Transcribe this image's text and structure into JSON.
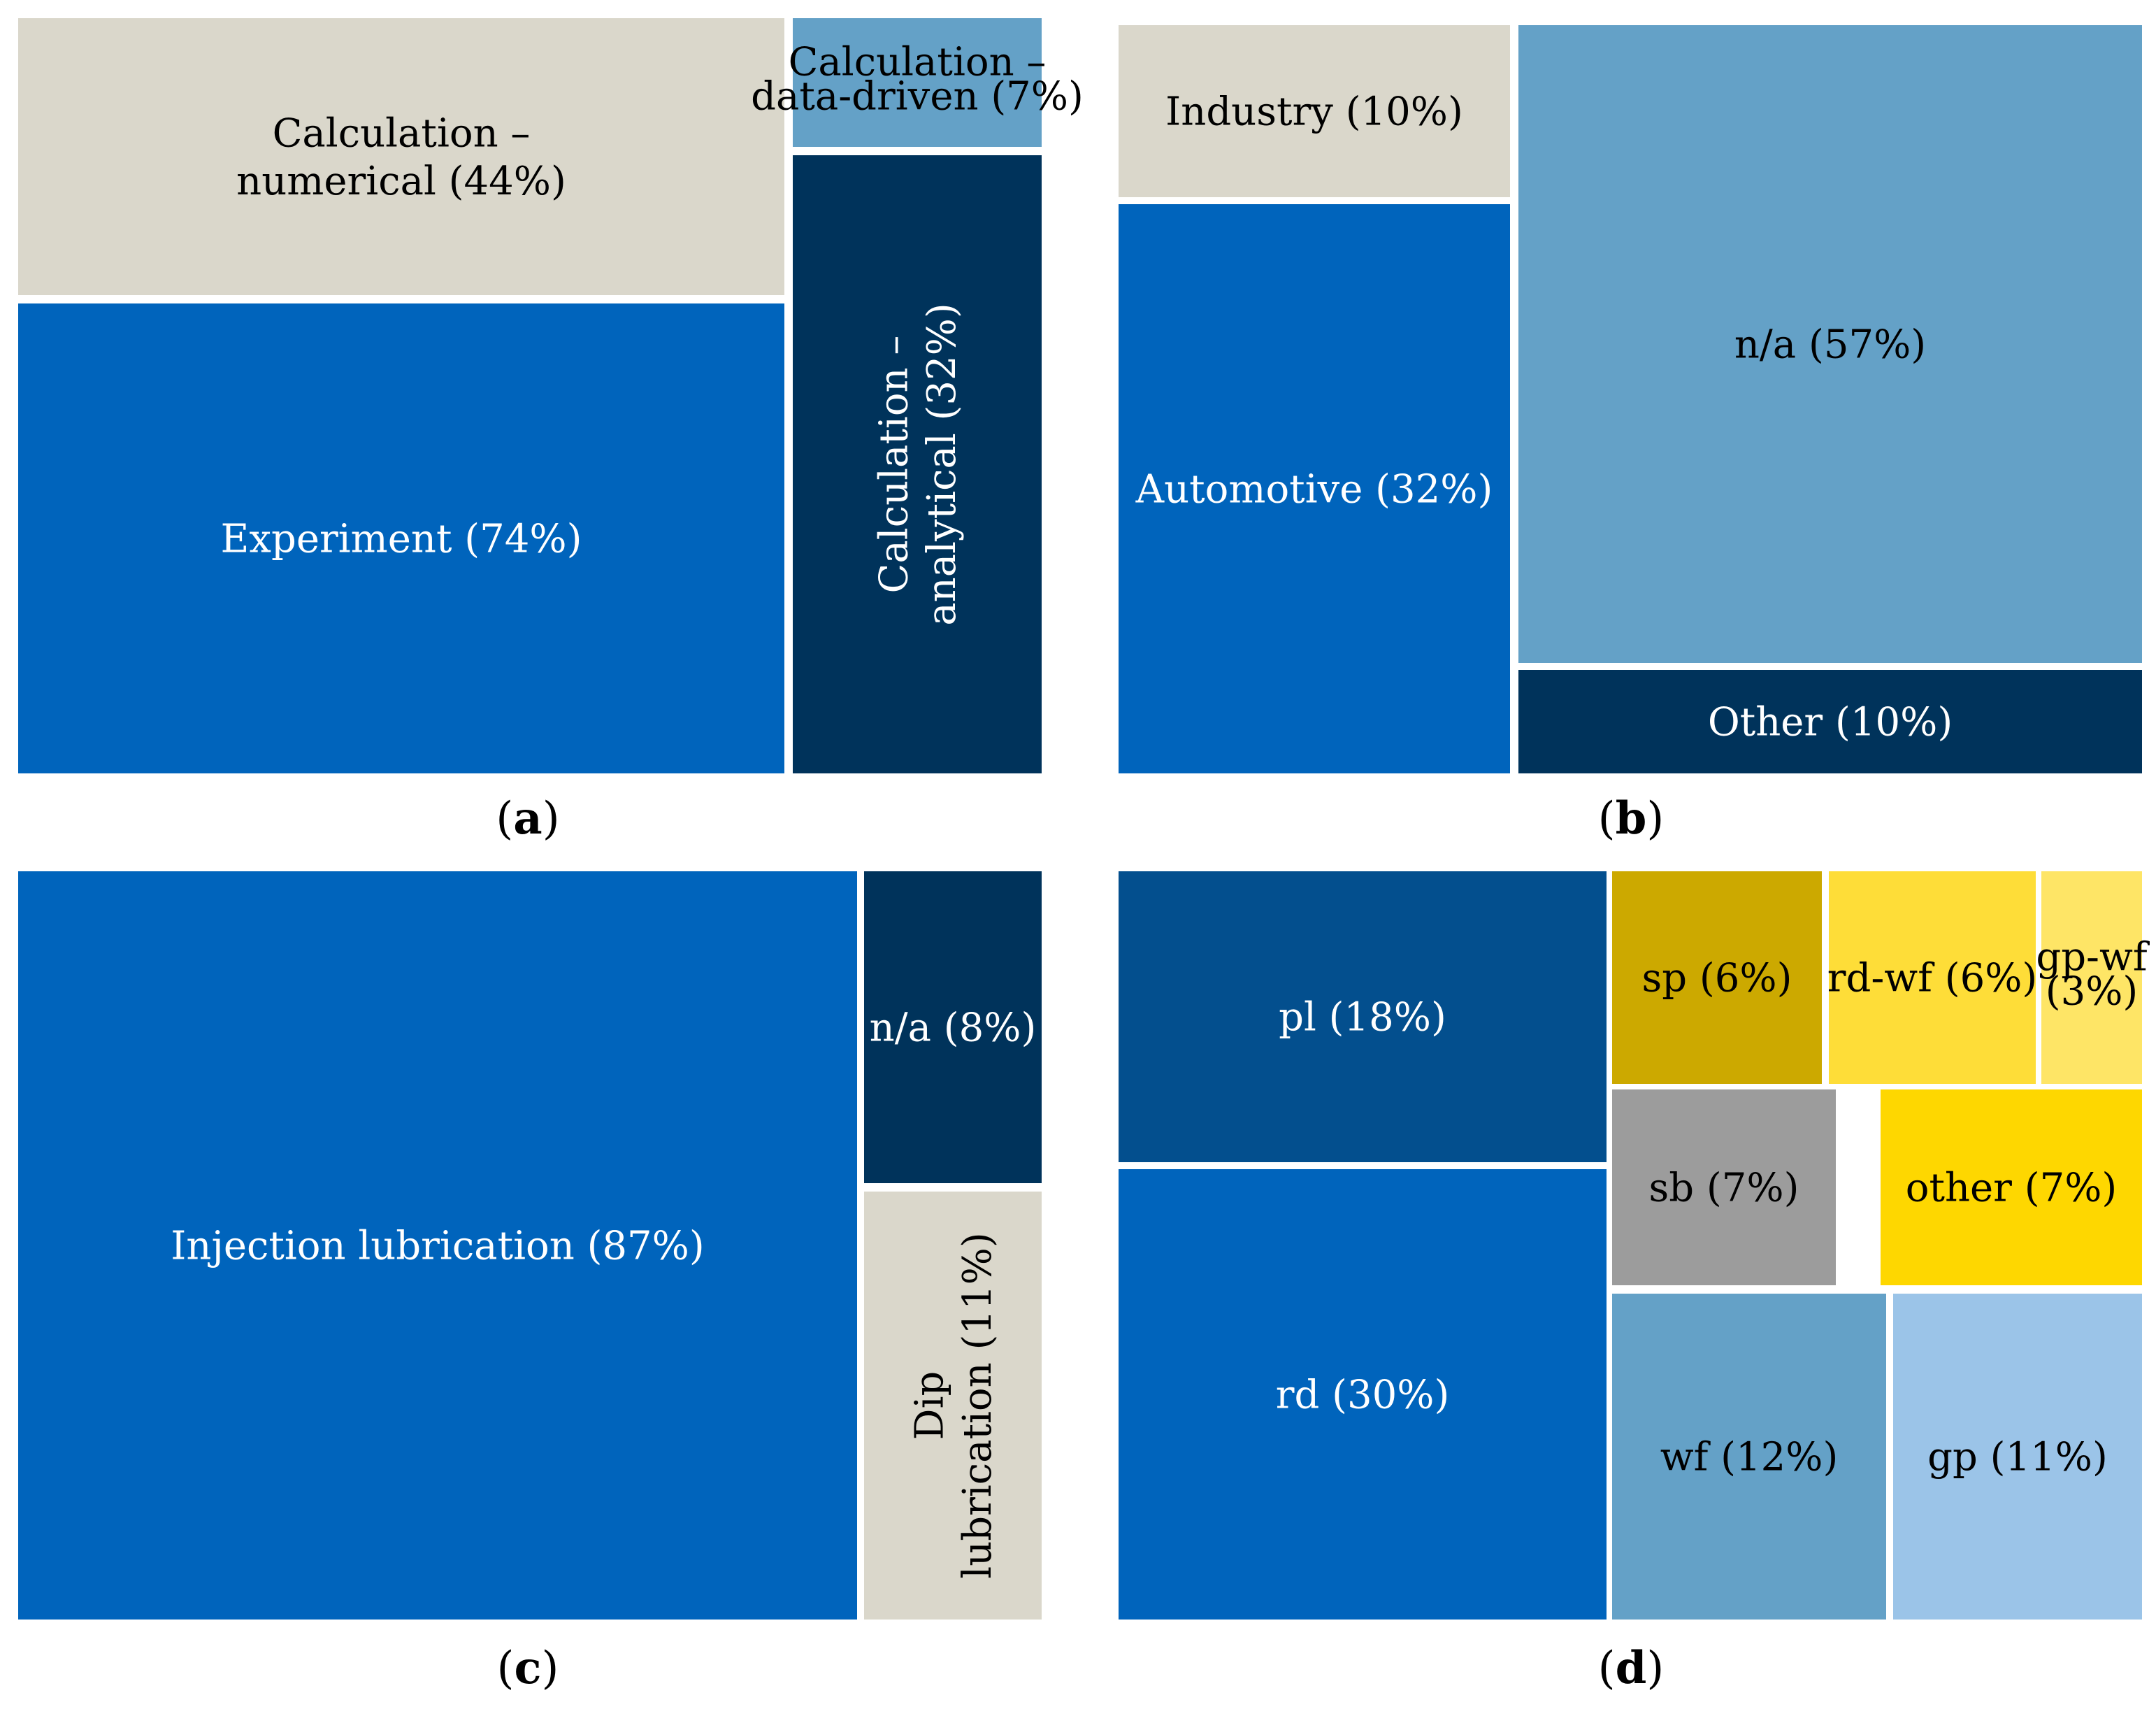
{
  "colors": {
    "beige": "#dad7cb",
    "blue": "#0064bc",
    "navy": "#00335b",
    "steel": "#64a1c7",
    "darkblue": "#034f8e",
    "mustard": "#cca900",
    "yellow": "#fedd38",
    "lightyellow": "#fee566",
    "gray": "#9c9c9c",
    "gold": "#fed700",
    "lightblue": "#9bc4e8"
  },
  "chart_data": [
    {
      "id": "a",
      "type": "treemap",
      "caption": "a",
      "tiles": [
        {
          "lines": [
            "Calculation –",
            "numerical (44%)"
          ],
          "value": 44,
          "color": "beige",
          "text_color": "#000000"
        },
        {
          "lines": [
            "Calculation –",
            "data-driven (7%)"
          ],
          "value": 7,
          "color": "steel",
          "text_color": "#000000"
        },
        {
          "lines": [
            "Experiment (74%)"
          ],
          "value": 74,
          "color": "blue",
          "text_color": "#ffffff"
        },
        {
          "lines": [
            "Calculation –",
            "analytical (32%)"
          ],
          "value": 32,
          "color": "navy",
          "text_color": "#ffffff",
          "rotated": true
        }
      ]
    },
    {
      "id": "b",
      "type": "treemap",
      "caption": "b",
      "tiles": [
        {
          "lines": [
            "Industry (10%)"
          ],
          "value": 10,
          "color": "beige",
          "text_color": "#000000"
        },
        {
          "lines": [
            "n/a (57%)"
          ],
          "value": 57,
          "color": "steel",
          "text_color": "#000000"
        },
        {
          "lines": [
            "Automotive (32%)"
          ],
          "value": 32,
          "color": "blue",
          "text_color": "#ffffff"
        },
        {
          "lines": [
            "Other (10%)"
          ],
          "value": 10,
          "color": "navy",
          "text_color": "#ffffff"
        }
      ]
    },
    {
      "id": "c",
      "type": "treemap",
      "caption": "c",
      "tiles": [
        {
          "lines": [
            "Injection lubrication (87%)"
          ],
          "value": 87,
          "color": "blue",
          "text_color": "#ffffff"
        },
        {
          "lines": [
            "n/a (8%)"
          ],
          "value": 8,
          "color": "navy",
          "text_color": "#ffffff"
        },
        {
          "lines": [
            "Dip",
            "lubrication (11%)"
          ],
          "value": 11,
          "color": "beige",
          "text_color": "#000000",
          "rotated": true
        }
      ]
    },
    {
      "id": "d",
      "type": "treemap",
      "caption": "d",
      "tiles": [
        {
          "lines": [
            "pl (18%)"
          ],
          "value": 18,
          "color": "darkblue",
          "text_color": "#ffffff"
        },
        {
          "lines": [
            "rd (30%)"
          ],
          "value": 30,
          "color": "blue",
          "text_color": "#ffffff"
        },
        {
          "lines": [
            "sp (6%)"
          ],
          "value": 6,
          "color": "mustard",
          "text_color": "#000000"
        },
        {
          "lines": [
            "rd-wf (6%)"
          ],
          "value": 6,
          "color": "yellow",
          "text_color": "#000000"
        },
        {
          "lines": [
            "gp-wf",
            "(3%)"
          ],
          "value": 3,
          "color": "lightyellow",
          "text_color": "#000000",
          "small": true
        },
        {
          "lines": [
            "sb (7%)"
          ],
          "value": 7,
          "color": "gray",
          "text_color": "#000000"
        },
        {
          "lines": [
            "other (7%)"
          ],
          "value": 7,
          "color": "gold",
          "text_color": "#000000"
        },
        {
          "lines": [
            "wf (12%)"
          ],
          "value": 12,
          "color": "steel",
          "text_color": "#000000"
        },
        {
          "lines": [
            "gp (11%)"
          ],
          "value": 11,
          "color": "lightblue",
          "text_color": "#000000"
        }
      ]
    }
  ]
}
